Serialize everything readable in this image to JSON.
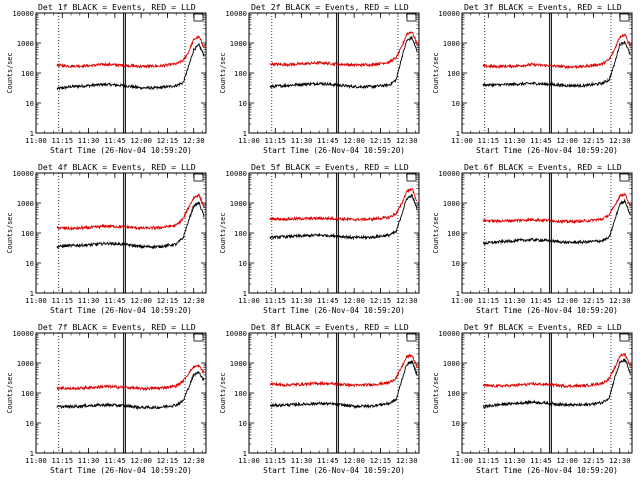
{
  "colors": {
    "background": "#ffffff",
    "axes": "#000000",
    "events": "#000000",
    "lld": "#dd0000"
  },
  "chart_data": [
    {
      "type": "line",
      "title": "Det 1f BLACK = Events, RED = LLD",
      "xlabel": "Start Time (26-Nov-04 10:59:20)",
      "ylabel": "Counts/sec",
      "y_scale": "log",
      "ylim": [
        1,
        10000
      ],
      "yticks": [
        "1",
        "10",
        "100",
        "1000",
        "10000"
      ],
      "xlim": [
        "11:00",
        "12:37"
      ],
      "xticks": [
        "11:00",
        "11:15",
        "11:30",
        "11:45",
        "12:00",
        "12:15",
        "12:30"
      ],
      "markers": {
        "dotted": [
          "11:13",
          "12:25"
        ],
        "solid": [
          "11:50",
          "11:51"
        ]
      },
      "series": [
        {
          "name": "Events",
          "color": "black",
          "x": [
            "11:12",
            "11:20",
            "11:30",
            "11:40",
            "11:50",
            "12:00",
            "12:10",
            "12:20",
            "12:24",
            "12:27",
            "12:30",
            "12:33",
            "12:36"
          ],
          "values": [
            30,
            35,
            38,
            42,
            38,
            32,
            32,
            38,
            48,
            160,
            600,
            850,
            380
          ]
        },
        {
          "name": "LLD",
          "color": "red",
          "x": [
            "11:12",
            "11:20",
            "11:30",
            "11:40",
            "11:50",
            "12:00",
            "12:10",
            "12:20",
            "12:24",
            "12:27",
            "12:30",
            "12:33",
            "12:36"
          ],
          "values": [
            180,
            170,
            175,
            195,
            180,
            165,
            170,
            200,
            260,
            500,
            1300,
            1600,
            700
          ]
        }
      ]
    },
    {
      "type": "line",
      "title": "Det 2f BLACK = Events, RED = LLD",
      "xlabel": "Start Time (26-Nov-04 10:59:20)",
      "ylabel": "Counts/sec",
      "y_scale": "log",
      "ylim": [
        1,
        10000
      ],
      "yticks": [
        "1",
        "10",
        "100",
        "1000",
        "10000"
      ],
      "xlim": [
        "11:00",
        "12:37"
      ],
      "xticks": [
        "11:00",
        "11:15",
        "11:30",
        "11:45",
        "12:00",
        "12:15",
        "12:30"
      ],
      "markers": {
        "dotted": [
          "11:13",
          "12:25"
        ],
        "solid": [
          "11:50",
          "11:51"
        ]
      },
      "series": [
        {
          "name": "Events",
          "color": "black",
          "x": [
            "11:12",
            "11:20",
            "11:30",
            "11:40",
            "11:50",
            "12:00",
            "12:10",
            "12:20",
            "12:24",
            "12:27",
            "12:30",
            "12:33",
            "12:36"
          ],
          "values": [
            35,
            38,
            42,
            45,
            40,
            35,
            35,
            40,
            60,
            300,
            1200,
            1500,
            500
          ]
        },
        {
          "name": "LLD",
          "color": "red",
          "x": [
            "11:12",
            "11:20",
            "11:30",
            "11:40",
            "11:50",
            "12:00",
            "12:10",
            "12:20",
            "12:24",
            "12:27",
            "12:30",
            "12:33",
            "12:36"
          ],
          "values": [
            200,
            190,
            200,
            220,
            200,
            185,
            190,
            230,
            320,
            700,
            2000,
            2400,
            900
          ]
        }
      ]
    },
    {
      "type": "line",
      "title": "Det 3f BLACK = Events, RED = LLD",
      "xlabel": "Start Time (26-Nov-04 10:59:20)",
      "ylabel": "Counts/sec",
      "y_scale": "log",
      "ylim": [
        1,
        10000
      ],
      "yticks": [
        "1",
        "10",
        "100",
        "1000",
        "10000"
      ],
      "xlim": [
        "11:00",
        "12:37"
      ],
      "xticks": [
        "11:00",
        "11:15",
        "11:30",
        "11:45",
        "12:00",
        "12:15",
        "12:30"
      ],
      "markers": {
        "dotted": [
          "11:13",
          "12:25"
        ],
        "solid": [
          "11:50",
          "11:51"
        ]
      },
      "series": [
        {
          "name": "Events",
          "color": "black",
          "x": [
            "11:12",
            "11:20",
            "11:30",
            "11:40",
            "11:50",
            "12:00",
            "12:10",
            "12:20",
            "12:24",
            "12:27",
            "12:30",
            "12:33",
            "12:36"
          ],
          "values": [
            40,
            40,
            42,
            45,
            42,
            38,
            38,
            45,
            60,
            200,
            900,
            1100,
            400
          ]
        },
        {
          "name": "LLD",
          "color": "red",
          "x": [
            "11:12",
            "11:20",
            "11:30",
            "11:40",
            "11:50",
            "12:00",
            "12:10",
            "12:20",
            "12:24",
            "12:27",
            "12:30",
            "12:33",
            "12:36"
          ],
          "values": [
            170,
            165,
            170,
            190,
            175,
            160,
            165,
            200,
            280,
            600,
            1600,
            2000,
            800
          ]
        }
      ]
    },
    {
      "type": "line",
      "title": "Det 4f BLACK = Events, RED = LLD",
      "xlabel": "Start Time (26-Nov-04 10:59:20)",
      "ylabel": "Counts/sec",
      "y_scale": "log",
      "ylim": [
        1,
        10000
      ],
      "yticks": [
        "1",
        "10",
        "100",
        "1000",
        "10000"
      ],
      "xlim": [
        "11:00",
        "12:37"
      ],
      "xticks": [
        "11:00",
        "11:15",
        "11:30",
        "11:45",
        "12:00",
        "12:15",
        "12:30"
      ],
      "markers": {
        "dotted": [
          "11:13",
          "12:25"
        ],
        "solid": [
          "11:50",
          "11:51"
        ]
      },
      "series": [
        {
          "name": "Events",
          "color": "black",
          "x": [
            "11:12",
            "11:20",
            "11:30",
            "11:40",
            "11:50",
            "12:00",
            "12:10",
            "12:20",
            "12:24",
            "12:27",
            "12:30",
            "12:33",
            "12:36"
          ],
          "values": [
            35,
            38,
            40,
            45,
            42,
            35,
            35,
            42,
            70,
            250,
            800,
            1000,
            350
          ]
        },
        {
          "name": "LLD",
          "color": "red",
          "x": [
            "11:12",
            "11:20",
            "11:30",
            "11:40",
            "11:50",
            "12:00",
            "12:10",
            "12:20",
            "12:24",
            "12:27",
            "12:30",
            "12:33",
            "12:36"
          ],
          "values": [
            150,
            140,
            150,
            170,
            160,
            145,
            150,
            180,
            300,
            700,
            1500,
            1900,
            700
          ]
        }
      ]
    },
    {
      "type": "line",
      "title": "Det 5f BLACK = Events, RED = LLD",
      "xlabel": "Start Time (26-Nov-04 10:59:20)",
      "ylabel": "Counts/sec",
      "y_scale": "log",
      "ylim": [
        1,
        10000
      ],
      "yticks": [
        "1",
        "10",
        "100",
        "1000",
        "10000"
      ],
      "xlim": [
        "11:00",
        "12:37"
      ],
      "xticks": [
        "11:00",
        "11:15",
        "11:30",
        "11:45",
        "12:00",
        "12:15",
        "12:30"
      ],
      "markers": {
        "dotted": [
          "11:13",
          "12:25"
        ],
        "solid": [
          "11:50",
          "11:51"
        ]
      },
      "series": [
        {
          "name": "Events",
          "color": "black",
          "x": [
            "11:12",
            "11:20",
            "11:30",
            "11:40",
            "11:50",
            "12:00",
            "12:10",
            "12:20",
            "12:24",
            "12:27",
            "12:30",
            "12:33",
            "12:36"
          ],
          "values": [
            70,
            75,
            80,
            85,
            80,
            70,
            72,
            85,
            110,
            400,
            1400,
            1800,
            600
          ]
        },
        {
          "name": "LLD",
          "color": "red",
          "x": [
            "11:12",
            "11:20",
            "11:30",
            "11:40",
            "11:50",
            "12:00",
            "12:10",
            "12:20",
            "12:24",
            "12:27",
            "12:30",
            "12:33",
            "12:36"
          ],
          "values": [
            300,
            290,
            300,
            310,
            300,
            280,
            290,
            330,
            450,
            900,
            2500,
            3000,
            1100
          ]
        }
      ]
    },
    {
      "type": "line",
      "title": "Det 6f BLACK = Events, RED = LLD",
      "xlabel": "Start Time (26-Nov-04 10:59:20)",
      "ylabel": "Counts/sec",
      "y_scale": "log",
      "ylim": [
        1,
        10000
      ],
      "yticks": [
        "1",
        "10",
        "100",
        "1000",
        "10000"
      ],
      "xlim": [
        "11:00",
        "12:37"
      ],
      "xticks": [
        "11:00",
        "11:15",
        "11:30",
        "11:45",
        "12:00",
        "12:15",
        "12:30"
      ],
      "markers": {
        "dotted": [
          "11:13",
          "12:25"
        ],
        "solid": [
          "11:50",
          "11:51"
        ]
      },
      "series": [
        {
          "name": "Events",
          "color": "black",
          "x": [
            "11:12",
            "11:20",
            "11:30",
            "11:40",
            "11:50",
            "12:00",
            "12:10",
            "12:20",
            "12:24",
            "12:27",
            "12:30",
            "12:33",
            "12:36"
          ],
          "values": [
            45,
            50,
            55,
            60,
            55,
            48,
            50,
            55,
            70,
            250,
            900,
            1200,
            400
          ]
        },
        {
          "name": "LLD",
          "color": "red",
          "x": [
            "11:12",
            "11:20",
            "11:30",
            "11:40",
            "11:50",
            "12:00",
            "12:10",
            "12:20",
            "12:24",
            "12:27",
            "12:30",
            "12:33",
            "12:36"
          ],
          "values": [
            260,
            250,
            260,
            280,
            260,
            240,
            250,
            290,
            400,
            800,
            1700,
            2000,
            800
          ]
        }
      ]
    },
    {
      "type": "line",
      "title": "Det 7f BLACK = Events, RED = LLD",
      "xlabel": "Start Time (26-Nov-04 10:59:20)",
      "ylabel": "Counts/sec",
      "y_scale": "log",
      "ylim": [
        1,
        10000
      ],
      "yticks": [
        "1",
        "10",
        "100",
        "1000",
        "10000"
      ],
      "xlim": [
        "11:00",
        "12:37"
      ],
      "xticks": [
        "11:00",
        "11:15",
        "11:30",
        "11:45",
        "12:00",
        "12:15",
        "12:30"
      ],
      "markers": {
        "dotted": [
          "11:13",
          "12:25"
        ],
        "solid": [
          "11:50",
          "11:51"
        ]
      },
      "series": [
        {
          "name": "Events",
          "color": "black",
          "x": [
            "11:12",
            "11:20",
            "11:30",
            "11:40",
            "11:50",
            "12:00",
            "12:10",
            "12:20",
            "12:24",
            "12:27",
            "12:30",
            "12:33",
            "12:36"
          ],
          "values": [
            35,
            35,
            38,
            40,
            38,
            33,
            33,
            40,
            55,
            150,
            400,
            500,
            250
          ]
        },
        {
          "name": "LLD",
          "color": "red",
          "x": [
            "11:12",
            "11:20",
            "11:30",
            "11:40",
            "11:50",
            "12:00",
            "12:10",
            "12:20",
            "12:24",
            "12:27",
            "12:30",
            "12:33",
            "12:36"
          ],
          "values": [
            150,
            140,
            150,
            165,
            155,
            140,
            145,
            170,
            250,
            450,
            750,
            800,
            450
          ]
        }
      ]
    },
    {
      "type": "line",
      "title": "Det 8f BLACK = Events, RED = LLD",
      "xlabel": "Start Time (26-Nov-04 10:59:20)",
      "ylabel": "Counts/sec",
      "y_scale": "log",
      "ylim": [
        1,
        10000
      ],
      "yticks": [
        "1",
        "10",
        "100",
        "1000",
        "10000"
      ],
      "xlim": [
        "11:00",
        "12:37"
      ],
      "xticks": [
        "11:00",
        "11:15",
        "11:30",
        "11:45",
        "12:00",
        "12:15",
        "12:30"
      ],
      "markers": {
        "dotted": [
          "11:13",
          "12:25"
        ],
        "solid": [
          "11:50",
          "11:51"
        ]
      },
      "series": [
        {
          "name": "Events",
          "color": "black",
          "x": [
            "11:12",
            "11:20",
            "11:30",
            "11:40",
            "11:50",
            "12:00",
            "12:10",
            "12:20",
            "12:24",
            "12:27",
            "12:30",
            "12:33",
            "12:36"
          ],
          "values": [
            38,
            40,
            42,
            45,
            42,
            36,
            37,
            45,
            60,
            250,
            900,
            1100,
            400
          ]
        },
        {
          "name": "LLD",
          "color": "red",
          "x": [
            "11:12",
            "11:20",
            "11:30",
            "11:40",
            "11:50",
            "12:00",
            "12:10",
            "12:20",
            "12:24",
            "12:27",
            "12:30",
            "12:33",
            "12:36"
          ],
          "values": [
            200,
            185,
            195,
            210,
            200,
            180,
            190,
            220,
            320,
            700,
            1600,
            1800,
            700
          ]
        }
      ]
    },
    {
      "type": "line",
      "title": "Det 9f BLACK = Events, RED = LLD",
      "xlabel": "Start Time (26-Nov-04 10:59:20)",
      "ylabel": "Counts/sec",
      "y_scale": "log",
      "ylim": [
        1,
        10000
      ],
      "yticks": [
        "1",
        "10",
        "100",
        "1000",
        "10000"
      ],
      "xlim": [
        "11:00",
        "12:37"
      ],
      "xticks": [
        "11:00",
        "11:15",
        "11:30",
        "11:45",
        "12:00",
        "12:15",
        "12:30"
      ],
      "markers": {
        "dotted": [
          "11:13",
          "12:25"
        ],
        "solid": [
          "11:50",
          "11:51"
        ]
      },
      "series": [
        {
          "name": "Events",
          "color": "black",
          "x": [
            "11:12",
            "11:20",
            "11:30",
            "11:40",
            "11:50",
            "12:00",
            "12:10",
            "12:20",
            "12:24",
            "12:27",
            "12:30",
            "12:33",
            "12:36"
          ],
          "values": [
            35,
            40,
            45,
            50,
            45,
            40,
            40,
            48,
            70,
            300,
            1000,
            1300,
            450
          ]
        },
        {
          "name": "LLD",
          "color": "red",
          "x": [
            "11:12",
            "11:20",
            "11:30",
            "11:40",
            "11:50",
            "12:00",
            "12:10",
            "12:20",
            "12:24",
            "12:27",
            "12:30",
            "12:33",
            "12:36"
          ],
          "values": [
            180,
            170,
            180,
            200,
            190,
            170,
            175,
            210,
            300,
            650,
            1700,
            2000,
            800
          ]
        }
      ]
    }
  ]
}
